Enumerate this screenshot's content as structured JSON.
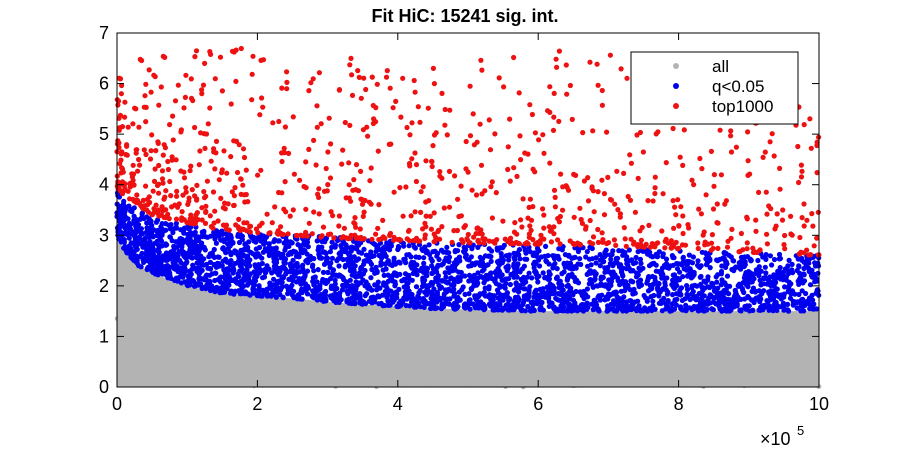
{
  "chart_data": {
    "type": "scatter",
    "title": "Fit HiC: 15241 sig. int.",
    "xlabel": "",
    "ylabel": "",
    "xlim": [
      0,
      1000000
    ],
    "ylim": [
      0,
      7
    ],
    "x_exponent_label": "×10",
    "x_exponent_power": "5",
    "x_ticks": [
      0,
      200000,
      400000,
      600000,
      800000,
      1000000
    ],
    "x_tick_labels": [
      "0",
      "2",
      "4",
      "6",
      "8",
      "10"
    ],
    "y_ticks": [
      0,
      1,
      2,
      3,
      4,
      5,
      6,
      7
    ],
    "y_tick_labels": [
      "0",
      "1",
      "2",
      "3",
      "4",
      "5",
      "6",
      "7"
    ],
    "grid": false,
    "legend_position": "top-right",
    "series": [
      {
        "name": "all",
        "color": "#b3b3b3",
        "description_ranges": [
          {
            "x": 0,
            "y_max": 3.0
          },
          {
            "x": 10000,
            "y_max": 2.7
          },
          {
            "x": 30000,
            "y_max": 2.4
          },
          {
            "x": 60000,
            "y_max": 2.2
          },
          {
            "x": 100000,
            "y_max": 2.0
          },
          {
            "x": 150000,
            "y_max": 1.85
          },
          {
            "x": 250000,
            "y_max": 1.75
          },
          {
            "x": 330000,
            "y_max": 1.65
          },
          {
            "x": 450000,
            "y_max": 1.55
          },
          {
            "x": 600000,
            "y_max": 1.5
          },
          {
            "x": 1000000,
            "y_max": 1.5
          }
        ]
      },
      {
        "name": "q<0.05",
        "color": "#0000ee",
        "description_ranges": [
          {
            "x": 0,
            "y_min": 3.0,
            "y_max": 3.9
          },
          {
            "x": 10000,
            "y_min": 2.7,
            "y_max": 3.7
          },
          {
            "x": 30000,
            "y_min": 2.4,
            "y_max": 3.5
          },
          {
            "x": 60000,
            "y_min": 2.2,
            "y_max": 3.3
          },
          {
            "x": 100000,
            "y_min": 2.0,
            "y_max": 3.2
          },
          {
            "x": 150000,
            "y_min": 1.85,
            "y_max": 3.1
          },
          {
            "x": 250000,
            "y_min": 1.75,
            "y_max": 3.0
          },
          {
            "x": 330000,
            "y_min": 1.65,
            "y_max": 2.95
          },
          {
            "x": 450000,
            "y_min": 1.55,
            "y_max": 2.85
          },
          {
            "x": 600000,
            "y_min": 1.5,
            "y_max": 2.8
          },
          {
            "x": 1000000,
            "y_min": 1.5,
            "y_max": 2.6
          }
        ]
      },
      {
        "name": "top1000",
        "color": "#ee1111",
        "description_ranges": [
          {
            "x": 0,
            "y_min": 3.9,
            "y_max": 6.1
          },
          {
            "x": 50000,
            "y_min": 3.4,
            "y_max": 6.7
          },
          {
            "x": 150000,
            "y_min": 3.1,
            "y_max": 6.7
          },
          {
            "x": 300000,
            "y_min": 2.95,
            "y_max": 6.7
          },
          {
            "x": 500000,
            "y_min": 2.85,
            "y_max": 6.6
          },
          {
            "x": 700000,
            "y_min": 2.8,
            "y_max": 6.7
          },
          {
            "x": 1000000,
            "y_min": 2.6,
            "y_max": 5.5
          }
        ]
      }
    ]
  }
}
